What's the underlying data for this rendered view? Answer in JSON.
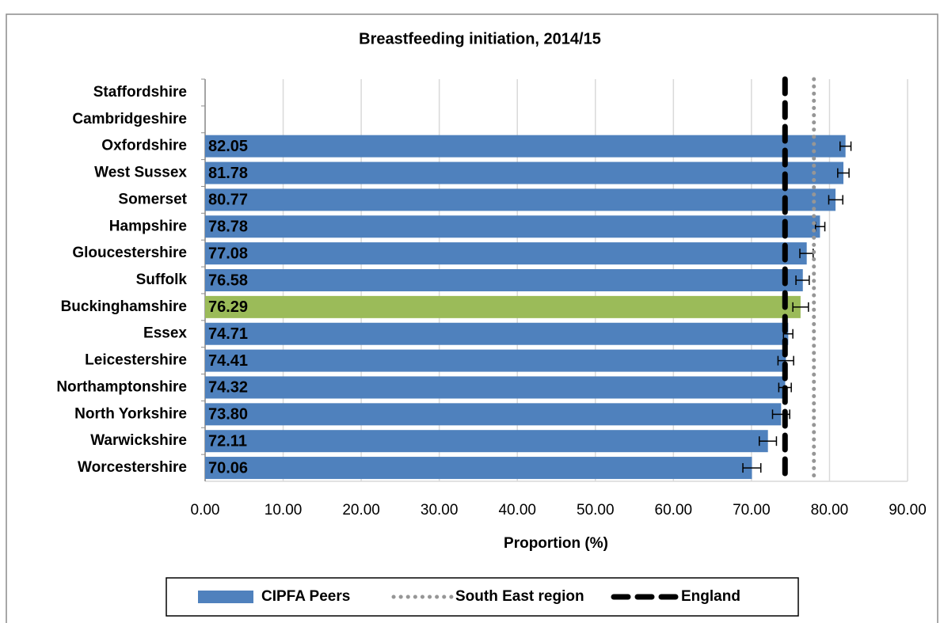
{
  "chart_data": {
    "type": "hbar",
    "title": "Breastfeeding initiation, 2014/15",
    "xlabel": "Proportion (%)",
    "categories": [
      "Staffordshire",
      "Cambridgeshire",
      "Oxfordshire",
      "West Sussex",
      "Somerset",
      "Hampshire",
      "Gloucestershire",
      "Suffolk",
      "Buckinghamshire",
      "Essex",
      "Leicestershire",
      "Northamptonshire",
      "North Yorkshire",
      "Warwickshire",
      "Worcestershire"
    ],
    "series": [
      {
        "name": "CIPFA Peers",
        "color": "#4f81bd",
        "bar_colors": [
          "#4f81bd",
          "#4f81bd",
          "#4f81bd",
          "#4f81bd",
          "#4f81bd",
          "#4f81bd",
          "#4f81bd",
          "#4f81bd",
          "#9bbb59",
          "#4f81bd",
          "#4f81bd",
          "#4f81bd",
          "#4f81bd",
          "#4f81bd",
          "#4f81bd"
        ],
        "values": [
          null,
          null,
          82.05,
          81.78,
          80.77,
          78.78,
          77.08,
          76.58,
          76.29,
          74.71,
          74.41,
          74.32,
          73.8,
          72.11,
          70.06
        ],
        "value_labels": [
          null,
          null,
          "82.05",
          "81.78",
          "80.77",
          "78.78",
          "77.08",
          "76.58",
          "76.29",
          "74.71",
          "74.41",
          "74.32",
          "73.80",
          "72.11",
          "70.06"
        ],
        "ci_lower": [
          null,
          null,
          81.35,
          81.05,
          79.9,
          78.2,
          76.2,
          75.7,
          75.3,
          74.1,
          73.4,
          73.5,
          72.7,
          71.0,
          68.9
        ],
        "ci_upper": [
          null,
          null,
          82.75,
          82.5,
          81.7,
          79.4,
          77.9,
          77.4,
          77.3,
          75.3,
          75.4,
          75.1,
          74.9,
          73.2,
          71.2
        ]
      }
    ],
    "reference_lines": [
      {
        "name": "South East region",
        "value": 78.0,
        "color": "#969696",
        "style": "dotted"
      },
      {
        "name": "England",
        "value": 74.3,
        "color": "#000000",
        "style": "dashed"
      }
    ],
    "xlim": [
      0,
      90
    ],
    "xticks": [
      {
        "value": 0,
        "label": "0.00"
      },
      {
        "value": 10,
        "label": "10.00"
      },
      {
        "value": 20,
        "label": "20.00"
      },
      {
        "value": 30,
        "label": "30.00"
      },
      {
        "value": 40,
        "label": "40.00"
      },
      {
        "value": 50,
        "label": "50.00"
      },
      {
        "value": 60,
        "label": "60.00"
      },
      {
        "value": 70,
        "label": "70.00"
      },
      {
        "value": 80,
        "label": "80.00"
      },
      {
        "value": 90,
        "label": "90.00"
      }
    ],
    "grid": true,
    "legend": "bottom"
  }
}
